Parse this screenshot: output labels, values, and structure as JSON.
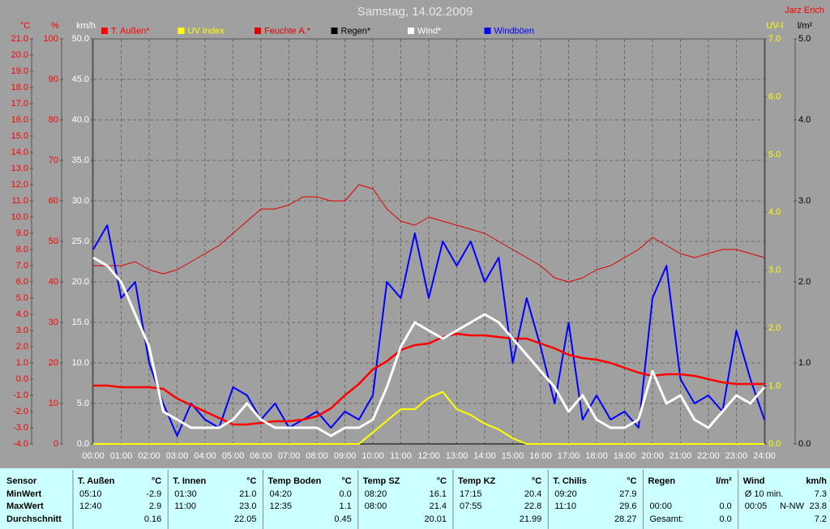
{
  "chart_data": {
    "type": "line",
    "title": "Samstag, 14.02.2009",
    "author": "Jarz Erich",
    "x": [
      0,
      0.5,
      1,
      1.5,
      2,
      2.5,
      3,
      3.5,
      4,
      4.5,
      5,
      5.5,
      6,
      6.5,
      7,
      7.5,
      8,
      8.5,
      9,
      9.5,
      10,
      10.5,
      11,
      11.5,
      12,
      12.5,
      13,
      13.5,
      14,
      14.5,
      15,
      15.5,
      16,
      16.5,
      17,
      17.5,
      18,
      18.5,
      19,
      19.5,
      20,
      20.5,
      21,
      21.5,
      22,
      22.5,
      23,
      23.5,
      24
    ],
    "xlim": [
      0,
      24
    ],
    "xticks": [
      {
        "value": 0,
        "label": "00:00"
      },
      {
        "value": 1,
        "label": "01:00"
      },
      {
        "value": 2,
        "label": "02:00"
      },
      {
        "value": 3,
        "label": "03:00"
      },
      {
        "value": 4,
        "label": "04:00"
      },
      {
        "value": 5,
        "label": "05:00"
      },
      {
        "value": 6,
        "label": "06:00"
      },
      {
        "value": 7,
        "label": "07:00"
      },
      {
        "value": 8,
        "label": "08:00"
      },
      {
        "value": 9,
        "label": "09:00"
      },
      {
        "value": 10,
        "label": "10:00"
      },
      {
        "value": 11,
        "label": "11:00"
      },
      {
        "value": 12,
        "label": "12:00"
      },
      {
        "value": 13,
        "label": "13:00"
      },
      {
        "value": 14,
        "label": "14:00"
      },
      {
        "value": 15,
        "label": "15:00"
      },
      {
        "value": 16,
        "label": "16:00"
      },
      {
        "value": 17,
        "label": "17:00"
      },
      {
        "value": 18,
        "label": "18:00"
      },
      {
        "value": 19,
        "label": "19:00"
      },
      {
        "value": 20,
        "label": "20:00"
      },
      {
        "value": 21,
        "label": "21:00"
      },
      {
        "value": 22,
        "label": "22:00"
      },
      {
        "value": 23,
        "label": "23:00"
      },
      {
        "value": 24,
        "label": "24:00"
      }
    ],
    "grid": true,
    "axes": [
      {
        "label": "°C",
        "color": "#ff0000",
        "side": "left",
        "lim": [
          -4,
          21
        ],
        "ticks": [
          {
            "value": 21,
            "label": "21.0"
          },
          {
            "value": 20,
            "label": "20.0"
          },
          {
            "value": 19,
            "label": "19.0"
          },
          {
            "value": 18,
            "label": "18.0"
          },
          {
            "value": 17,
            "label": "17.0"
          },
          {
            "value": 16,
            "label": "16.0"
          },
          {
            "value": 15,
            "label": "15.0"
          },
          {
            "value": 14,
            "label": "14.0"
          },
          {
            "value": 13,
            "label": "13.0"
          },
          {
            "value": 12,
            "label": "12.0"
          },
          {
            "value": 11,
            "label": "11.0"
          },
          {
            "value": 10,
            "label": "10.0"
          },
          {
            "value": 9,
            "label": "9.0"
          },
          {
            "value": 8,
            "label": "8.0"
          },
          {
            "value": 7,
            "label": "7.0"
          },
          {
            "value": 6,
            "label": "6.0"
          },
          {
            "value": 5,
            "label": "5.0"
          },
          {
            "value": 4,
            "label": "4.0"
          },
          {
            "value": 3,
            "label": "3.0"
          },
          {
            "value": 2,
            "label": "2.0"
          },
          {
            "value": 1,
            "label": "1.0"
          },
          {
            "value": 0,
            "label": "0.0"
          },
          {
            "value": -1,
            "label": "-1.0"
          },
          {
            "value": -2,
            "label": "-2.0"
          },
          {
            "value": -3,
            "label": "-3.0"
          },
          {
            "value": -4,
            "label": "-4.0"
          }
        ]
      },
      {
        "label": "%",
        "color": "#ff0000",
        "side": "left",
        "lim": [
          0,
          100
        ],
        "ticks": [
          100,
          90,
          80,
          70,
          60,
          50,
          40,
          30,
          20,
          10,
          0
        ]
      },
      {
        "label": "km/h",
        "color": "#ffffff",
        "side": "left",
        "grid": true,
        "lim": [
          0,
          50
        ],
        "ticks": [
          {
            "value": 50,
            "label": "50.0"
          },
          {
            "value": 45,
            "label": "45.0"
          },
          {
            "value": 40,
            "label": "40.0"
          },
          {
            "value": 35,
            "label": "35.0"
          },
          {
            "value": 30,
            "label": "30.0"
          },
          {
            "value": 25,
            "label": "25.0"
          },
          {
            "value": 20,
            "label": "20.0"
          },
          {
            "value": 15,
            "label": "15.0"
          },
          {
            "value": 10,
            "label": "10.0"
          },
          {
            "value": 5,
            "label": "5.0"
          },
          {
            "value": 0,
            "label": "0.0"
          }
        ]
      },
      {
        "label": "UV-I",
        "color": "#ffff00",
        "side": "right",
        "lim": [
          0,
          7
        ],
        "ticks": [
          {
            "value": 7,
            "label": "7.0"
          },
          {
            "value": 6,
            "label": "6.0"
          },
          {
            "value": 5,
            "label": "5.0"
          },
          {
            "value": 4,
            "label": "4.0"
          },
          {
            "value": 3,
            "label": "3.0"
          },
          {
            "value": 2,
            "label": "2.0"
          },
          {
            "value": 1,
            "label": "1.0"
          },
          {
            "value": 0,
            "label": "0.0"
          }
        ]
      },
      {
        "label": "l/m²",
        "color": "#000000",
        "side": "right",
        "lim": [
          0,
          5
        ],
        "ticks": [
          {
            "value": 5,
            "label": "5.0"
          },
          {
            "value": 4,
            "label": "4.0"
          },
          {
            "value": 3,
            "label": "3.0"
          },
          {
            "value": 2,
            "label": "2.0"
          },
          {
            "value": 1,
            "label": "1.0"
          },
          {
            "value": 0,
            "label": "0.0"
          }
        ]
      }
    ],
    "series": [
      {
        "name": "T. Außen*",
        "color": "#ff0000",
        "axis": 0,
        "width": 2.5,
        "values": [
          -0.4,
          -0.4,
          -0.5,
          -0.5,
          -0.5,
          -0.6,
          -1.2,
          -1.6,
          -2.0,
          -2.4,
          -2.8,
          -2.8,
          -2.7,
          -2.6,
          -2.6,
          -2.5,
          -2.3,
          -1.8,
          -1.0,
          -0.3,
          0.6,
          1.1,
          1.8,
          2.1,
          2.2,
          2.6,
          2.8,
          2.7,
          2.7,
          2.6,
          2.5,
          2.5,
          2.2,
          1.9,
          1.5,
          1.3,
          1.2,
          1.0,
          0.7,
          0.4,
          0.2,
          0.3,
          0.3,
          0.2,
          0.0,
          -0.2,
          -0.3,
          -0.3,
          -0.3
        ]
      },
      {
        "name": "UV Index",
        "color": "#ffff00",
        "axis": 3,
        "width": 2,
        "values": [
          0,
          0,
          0,
          0,
          0,
          0,
          0,
          0,
          0,
          0,
          0,
          0,
          0,
          0,
          0,
          0,
          0,
          0,
          0,
          0,
          0.2,
          0.4,
          0.6,
          0.6,
          0.8,
          0.9,
          0.6,
          0.5,
          0.35,
          0.25,
          0.1,
          0,
          0,
          0,
          0,
          0,
          0,
          0,
          0,
          0,
          0,
          0,
          0,
          0,
          0,
          0,
          0,
          0,
          0
        ]
      },
      {
        "name": "Feuchte A.*",
        "color": "#e00000",
        "axis": 1,
        "width": 1,
        "values": [
          44,
          44,
          44,
          45,
          43,
          42,
          43,
          45,
          47,
          49,
          52,
          55,
          58,
          58,
          59,
          61,
          61,
          60,
          60,
          64,
          63,
          58,
          55,
          54,
          56,
          55,
          54,
          53,
          52,
          50,
          48,
          46,
          44,
          41,
          40,
          41,
          43,
          44,
          46,
          48,
          51,
          49,
          47,
          46,
          47,
          48,
          48,
          47,
          46
        ]
      },
      {
        "name": "Regen*",
        "color": "#000000",
        "axis": 4,
        "width": 1,
        "values": [
          0,
          0,
          0,
          0,
          0,
          0,
          0,
          0,
          0,
          0,
          0,
          0,
          0,
          0,
          0,
          0,
          0,
          0,
          0,
          0,
          0,
          0,
          0,
          0,
          0,
          0,
          0,
          0,
          0,
          0,
          0,
          0,
          0,
          0,
          0,
          0,
          0,
          0,
          0,
          0,
          0,
          0,
          0,
          0,
          0,
          0,
          0,
          0,
          0
        ]
      },
      {
        "name": "Wind*",
        "color": "#ffffff",
        "axis": 2,
        "width": 3,
        "values": [
          23,
          22,
          20,
          16,
          12,
          4,
          3,
          2,
          2,
          2,
          3,
          5,
          3,
          2,
          2,
          2,
          2,
          1,
          2,
          2,
          3,
          7,
          12,
          15,
          14,
          13,
          14,
          15,
          16,
          15,
          13,
          11,
          9,
          7,
          4,
          6,
          3,
          2,
          2,
          3,
          9,
          5,
          6,
          3,
          2,
          4,
          6,
          5,
          7
        ]
      },
      {
        "name": "Windböen",
        "color": "#0000ff",
        "axis": 2,
        "width": 2,
        "values": [
          24,
          27,
          18,
          20,
          10,
          5,
          1,
          5,
          3,
          2,
          7,
          6,
          3,
          5,
          2,
          3,
          4,
          2,
          4,
          3,
          6,
          20,
          18,
          26,
          18,
          25,
          22,
          25,
          20,
          23,
          10,
          18,
          12,
          5,
          15,
          3,
          6,
          3,
          4,
          2,
          18,
          22,
          8,
          5,
          6,
          4,
          14,
          8,
          3
        ]
      }
    ],
    "draw_order": [
      2,
      3,
      1,
      5,
      0,
      4
    ]
  },
  "table": {
    "row_labels": [
      "Sensor",
      "MinWert",
      "MaxWert",
      "Durchschnitt"
    ],
    "columns": [
      {
        "name": "T. Außen",
        "unit": "°C",
        "rows": [
          {
            "t": "05:10",
            "v": "-2.9"
          },
          {
            "t": "12:40",
            "v": "2.9"
          },
          {
            "v": "0.16"
          }
        ]
      },
      {
        "name": "T. Innen",
        "unit": "°C",
        "rows": [
          {
            "t": "01:30",
            "v": "21.0"
          },
          {
            "t": "11:00",
            "v": "23.0"
          },
          {
            "v": "22.05"
          }
        ]
      },
      {
        "name": "Temp Boden",
        "unit": "°C",
        "rows": [
          {
            "t": "04:20",
            "v": "0.0"
          },
          {
            "t": "12:35",
            "v": "1.1"
          },
          {
            "v": "0.45"
          }
        ]
      },
      {
        "name": "Temp SZ",
        "unit": "°C",
        "rows": [
          {
            "t": "08:20",
            "v": "16.1"
          },
          {
            "t": "08:00",
            "v": "21.4"
          },
          {
            "v": "20.01"
          }
        ]
      },
      {
        "name": "Temp KZ",
        "unit": "°C",
        "rows": [
          {
            "t": "17:15",
            "v": "20.4"
          },
          {
            "t": "07:55",
            "v": "22.8"
          },
          {
            "v": "21.99"
          }
        ]
      },
      {
        "name": "T. Chilis",
        "unit": "°C",
        "rows": [
          {
            "t": "09:20",
            "v": "27.9"
          },
          {
            "t": "11:10",
            "v": "29.6"
          },
          {
            "v": "28.27"
          }
        ]
      },
      {
        "name": "Regen",
        "unit": "l/m²",
        "rows": [
          null,
          {
            "t": "00:00",
            "v": "0.0"
          },
          {
            "t": "Gesamt:",
            "v": "0.0"
          }
        ]
      },
      {
        "name": "Wind",
        "unit": "km/h",
        "rows": [
          {
            "t": "Ø 10 min.",
            "v": "7.3"
          },
          {
            "t": "00:05",
            "d": "N-NW",
            "v": "23.8"
          },
          {
            "v": "7.2"
          }
        ]
      }
    ]
  }
}
